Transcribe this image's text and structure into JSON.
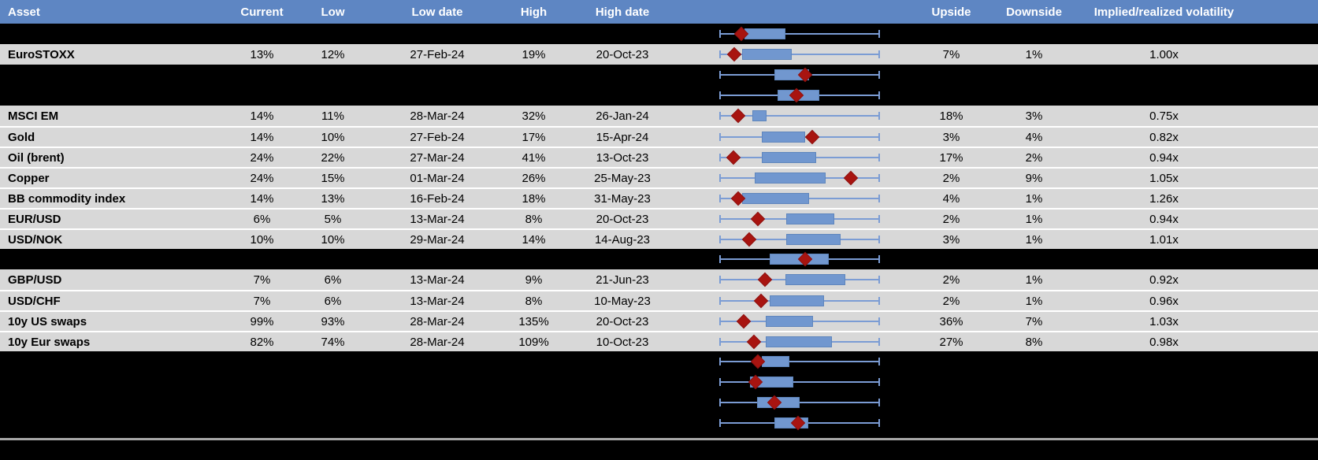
{
  "colors": {
    "header_bg": "#5e86c3",
    "header_text": "#ffffff",
    "row_gray": "#d8d8d8",
    "row_black": "#000000",
    "box_fill": "#7197cf",
    "box_border": "#5f86bd",
    "whisker": "#7b9cd4",
    "diamond": "#a81410",
    "diamond_border": "#8f1210",
    "divider": "#a6a6a6",
    "cell_text": "#000000",
    "row_sep": "#ffffff"
  },
  "header": {
    "columns": [
      "Asset",
      "Current",
      "Low",
      "Low date",
      "High",
      "High date",
      "",
      "Upside",
      "Downside",
      "Implied/realized volatility"
    ]
  },
  "chart_note": "Each row shows a normalized min-max range whisker (0-100%), an interquartile-style box and a dark-red diamond marking the current level",
  "rows": [
    {
      "type": "hidden",
      "asset": "",
      "current": "",
      "low": "",
      "low_date": "",
      "high": "",
      "high_date": "",
      "upside": "",
      "downside": "",
      "iv": "",
      "plot": {
        "box_start_pct": 15.7,
        "box_end_pct": 41.2,
        "marker_pct": 13.7
      }
    },
    {
      "type": "data",
      "asset": "EuroSTOXX",
      "current": "13%",
      "low": "12%",
      "low_date": "27-Feb-24",
      "high": "19%",
      "high_date": "20-Oct-23",
      "upside": "7%",
      "downside": "1%",
      "iv": "1.00x",
      "plot": {
        "box_start_pct": 14.2,
        "box_end_pct": 45.1,
        "marker_pct": 9.3
      }
    },
    {
      "type": "hidden",
      "asset": "",
      "current": "",
      "low": "",
      "low_date": "",
      "high": "",
      "high_date": "",
      "upside": "",
      "downside": "",
      "iv": "",
      "plot": {
        "box_start_pct": 34.3,
        "box_end_pct": 55.9,
        "marker_pct": 53.4
      }
    },
    {
      "type": "hidden",
      "asset": "",
      "current": "",
      "low": "",
      "low_date": "",
      "high": "",
      "high_date": "",
      "upside": "",
      "downside": "",
      "iv": "",
      "plot": {
        "box_start_pct": 36.3,
        "box_end_pct": 62.3,
        "marker_pct": 48.0
      }
    },
    {
      "type": "data",
      "asset": "MSCI EM",
      "current": "14%",
      "low": "11%",
      "low_date": "28-Mar-24",
      "high": "32%",
      "high_date": "26-Jan-24",
      "upside": "18%",
      "downside": "3%",
      "iv": "0.75x",
      "plot": {
        "box_start_pct": 20.6,
        "box_end_pct": 29.4,
        "marker_pct": 11.8
      }
    },
    {
      "type": "data",
      "asset": "Gold",
      "current": "14%",
      "low": "10%",
      "low_date": "27-Feb-24",
      "high": "17%",
      "high_date": "15-Apr-24",
      "upside": "3%",
      "downside": "4%",
      "iv": "0.82x",
      "plot": {
        "box_start_pct": 26.5,
        "box_end_pct": 53.4,
        "marker_pct": 57.8
      }
    },
    {
      "type": "data",
      "asset": "Oil (brent)",
      "current": "24%",
      "low": "22%",
      "low_date": "27-Mar-24",
      "high": "41%",
      "high_date": "13-Oct-23",
      "upside": "17%",
      "downside": "2%",
      "iv": "0.94x",
      "plot": {
        "box_start_pct": 26.5,
        "box_end_pct": 60.3,
        "marker_pct": 8.8
      }
    },
    {
      "type": "data",
      "asset": "Copper",
      "current": "24%",
      "low": "15%",
      "low_date": "01-Mar-24",
      "high": "26%",
      "high_date": "25-May-23",
      "upside": "2%",
      "downside": "9%",
      "iv": "1.05x",
      "plot": {
        "box_start_pct": 22.1,
        "box_end_pct": 66.2,
        "marker_pct": 81.9
      }
    },
    {
      "type": "data",
      "asset": "BB commodity index",
      "current": "14%",
      "low": "13%",
      "low_date": "16-Feb-24",
      "high": "18%",
      "high_date": "31-May-23",
      "upside": "4%",
      "downside": "1%",
      "iv": "1.26x",
      "plot": {
        "box_start_pct": 14.2,
        "box_end_pct": 55.9,
        "marker_pct": 11.8
      }
    },
    {
      "type": "data",
      "asset": "EUR/USD",
      "current": "6%",
      "low": "5%",
      "low_date": "13-Mar-24",
      "high": "8%",
      "high_date": "20-Oct-23",
      "upside": "2%",
      "downside": "1%",
      "iv": "0.94x",
      "plot": {
        "box_start_pct": 41.7,
        "box_end_pct": 71.6,
        "marker_pct": 24.0
      }
    },
    {
      "type": "data",
      "asset": "USD/NOK",
      "current": "10%",
      "low": "10%",
      "low_date": "29-Mar-24",
      "high": "14%",
      "high_date": "14-Aug-23",
      "upside": "3%",
      "downside": "1%",
      "iv": "1.01x",
      "plot": {
        "box_start_pct": 41.7,
        "box_end_pct": 75.5,
        "marker_pct": 18.6
      }
    },
    {
      "type": "hidden",
      "asset": "",
      "current": "",
      "low": "",
      "low_date": "",
      "high": "",
      "high_date": "",
      "upside": "",
      "downside": "",
      "iv": "",
      "plot": {
        "box_start_pct": 31.4,
        "box_end_pct": 68.1,
        "marker_pct": 53.4
      }
    },
    {
      "type": "data",
      "asset": "GBP/USD",
      "current": "7%",
      "low": "6%",
      "low_date": "13-Mar-24",
      "high": "9%",
      "high_date": "21-Jun-23",
      "upside": "2%",
      "downside": "1%",
      "iv": "0.92x",
      "plot": {
        "box_start_pct": 41.2,
        "box_end_pct": 78.4,
        "marker_pct": 28.4
      }
    },
    {
      "type": "data",
      "asset": "USD/CHF",
      "current": "7%",
      "low": "6%",
      "low_date": "13-Mar-24",
      "high": "8%",
      "high_date": "10-May-23",
      "upside": "2%",
      "downside": "1%",
      "iv": "0.96x",
      "plot": {
        "box_start_pct": 31.4,
        "box_end_pct": 65.2,
        "marker_pct": 26.0
      }
    },
    {
      "type": "data",
      "asset": "10y US swaps",
      "current": "99%",
      "low": "93%",
      "low_date": "28-Mar-24",
      "high": "135%",
      "high_date": "20-Oct-23",
      "upside": "36%",
      "downside": "7%",
      "iv": "1.03x",
      "plot": {
        "box_start_pct": 28.9,
        "box_end_pct": 58.3,
        "marker_pct": 15.2
      }
    },
    {
      "type": "data",
      "asset": "10y Eur swaps",
      "current": "82%",
      "low": "74%",
      "low_date": "28-Mar-24",
      "high": "109%",
      "high_date": "10-Oct-23",
      "upside": "27%",
      "downside": "8%",
      "iv": "0.98x",
      "plot": {
        "box_start_pct": 28.9,
        "box_end_pct": 70.1,
        "marker_pct": 21.6
      }
    },
    {
      "type": "hidden",
      "asset": "",
      "current": "",
      "low": "",
      "low_date": "",
      "high": "",
      "high_date": "",
      "upside": "",
      "downside": "",
      "iv": "",
      "plot": {
        "box_start_pct": 26.5,
        "box_end_pct": 43.6,
        "marker_pct": 24.0
      }
    },
    {
      "type": "hidden",
      "asset": "",
      "current": "",
      "low": "",
      "low_date": "",
      "high": "",
      "high_date": "",
      "upside": "",
      "downside": "",
      "iv": "",
      "plot": {
        "box_start_pct": 19.1,
        "box_end_pct": 46.1,
        "marker_pct": 22.5
      }
    },
    {
      "type": "hidden",
      "asset": "",
      "current": "",
      "low": "",
      "low_date": "",
      "high": "",
      "high_date": "",
      "upside": "",
      "downside": "",
      "iv": "",
      "plot": {
        "box_start_pct": 23.5,
        "box_end_pct": 50.0,
        "marker_pct": 34.3
      }
    },
    {
      "type": "hidden",
      "asset": "",
      "current": "",
      "low": "",
      "low_date": "",
      "high": "",
      "high_date": "",
      "upside": "",
      "downside": "",
      "iv": "",
      "plot": {
        "box_start_pct": 34.3,
        "box_end_pct": 55.4,
        "marker_pct": 49.0
      }
    }
  ]
}
